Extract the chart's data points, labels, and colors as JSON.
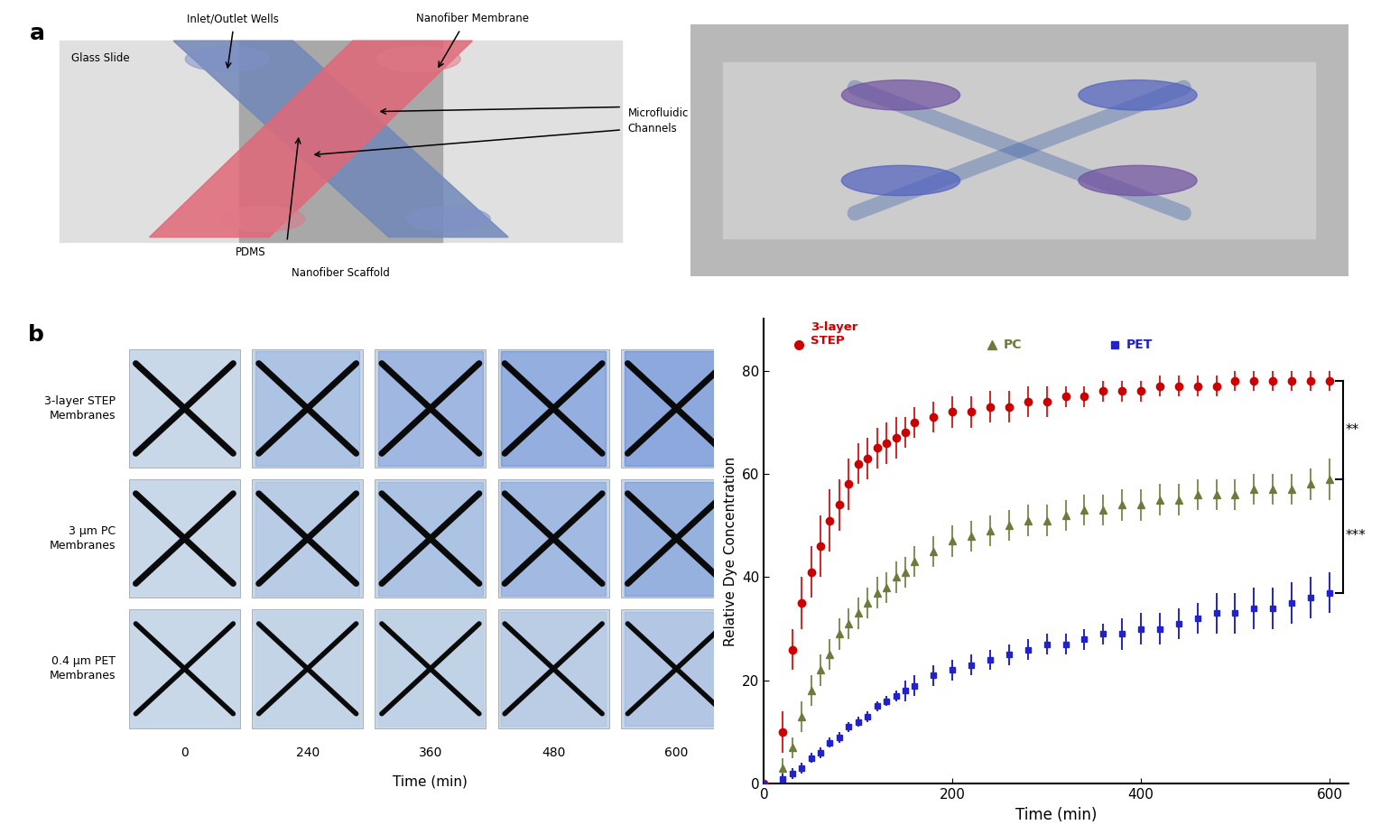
{
  "title_a": "a",
  "title_b": "b",
  "diagram_labels": {
    "inlet_outlet": "Inlet/Outlet Wells",
    "nanofiber_membrane": "Nanofiber Membrane",
    "glass_slide": "Glass Slide",
    "microfluidic": "Microfluidic\nChannels",
    "pdms": "PDMS",
    "nanofiber_scaffold": "Nanofiber Scaffold"
  },
  "row_labels": [
    "3-layer STEP\nMembranes",
    "3 μm PC\nMembranes",
    "0.4 μm PET\nMembranes"
  ],
  "col_labels": [
    "0",
    "240",
    "360",
    "480",
    "600"
  ],
  "time_xlabel": "Time (min)",
  "ylabel": "Relative Dye Concentration",
  "step_color": "#cc0000",
  "pc_color": "#6b7c3a",
  "pet_color": "#2222cc",
  "step_x": [
    0,
    20,
    30,
    40,
    50,
    60,
    70,
    80,
    90,
    100,
    110,
    120,
    130,
    140,
    150,
    160,
    180,
    200,
    220,
    240,
    260,
    280,
    300,
    320,
    340,
    360,
    380,
    400,
    420,
    440,
    460,
    480,
    500,
    520,
    540,
    560,
    580,
    600
  ],
  "step_y": [
    0,
    10,
    26,
    35,
    41,
    46,
    51,
    54,
    58,
    62,
    63,
    65,
    66,
    67,
    68,
    70,
    71,
    72,
    72,
    73,
    73,
    74,
    74,
    75,
    75,
    76,
    76,
    76,
    77,
    77,
    77,
    77,
    78,
    78,
    78,
    78,
    78,
    78
  ],
  "step_err": [
    0,
    4,
    4,
    5,
    5,
    6,
    6,
    5,
    5,
    4,
    4,
    4,
    4,
    4,
    3,
    3,
    3,
    3,
    3,
    3,
    3,
    3,
    3,
    2,
    2,
    2,
    2,
    2,
    2,
    2,
    2,
    2,
    2,
    2,
    2,
    2,
    2,
    2
  ],
  "pc_x": [
    0,
    20,
    30,
    40,
    50,
    60,
    70,
    80,
    90,
    100,
    110,
    120,
    130,
    140,
    150,
    160,
    180,
    200,
    220,
    240,
    260,
    280,
    300,
    320,
    340,
    360,
    380,
    400,
    420,
    440,
    460,
    480,
    500,
    520,
    540,
    560,
    580,
    600
  ],
  "pc_y": [
    0,
    3,
    7,
    13,
    18,
    22,
    25,
    29,
    31,
    33,
    35,
    37,
    38,
    40,
    41,
    43,
    45,
    47,
    48,
    49,
    50,
    51,
    51,
    52,
    53,
    53,
    54,
    54,
    55,
    55,
    56,
    56,
    56,
    57,
    57,
    57,
    58,
    59
  ],
  "pc_err": [
    0,
    2,
    2,
    3,
    3,
    3,
    3,
    3,
    3,
    3,
    3,
    3,
    3,
    3,
    3,
    3,
    3,
    3,
    3,
    3,
    3,
    3,
    3,
    3,
    3,
    3,
    3,
    3,
    3,
    3,
    3,
    3,
    3,
    3,
    3,
    3,
    3,
    4
  ],
  "pet_x": [
    0,
    20,
    30,
    40,
    50,
    60,
    70,
    80,
    90,
    100,
    110,
    120,
    130,
    140,
    150,
    160,
    180,
    200,
    220,
    240,
    260,
    280,
    300,
    320,
    340,
    360,
    380,
    400,
    420,
    440,
    460,
    480,
    500,
    520,
    540,
    560,
    580,
    600
  ],
  "pet_y": [
    0,
    1,
    2,
    3,
    5,
    6,
    8,
    9,
    11,
    12,
    13,
    15,
    16,
    17,
    18,
    19,
    21,
    22,
    23,
    24,
    25,
    26,
    27,
    27,
    28,
    29,
    29,
    30,
    30,
    31,
    32,
    33,
    33,
    34,
    34,
    35,
    36,
    37
  ],
  "pet_err": [
    0,
    1,
    1,
    1,
    1,
    1,
    1,
    1,
    1,
    1,
    1,
    1,
    1,
    1,
    2,
    2,
    2,
    2,
    2,
    2,
    2,
    2,
    2,
    2,
    2,
    2,
    3,
    3,
    3,
    3,
    3,
    4,
    4,
    4,
    4,
    4,
    4,
    4
  ],
  "ylim": [
    0,
    90
  ],
  "xlim": [
    0,
    620
  ],
  "yticks": [
    0,
    20,
    40,
    60,
    80
  ],
  "xticks": [
    0,
    200,
    400,
    600
  ],
  "y_step_end": 78,
  "y_pc_end": 59,
  "y_pet_end": 37
}
